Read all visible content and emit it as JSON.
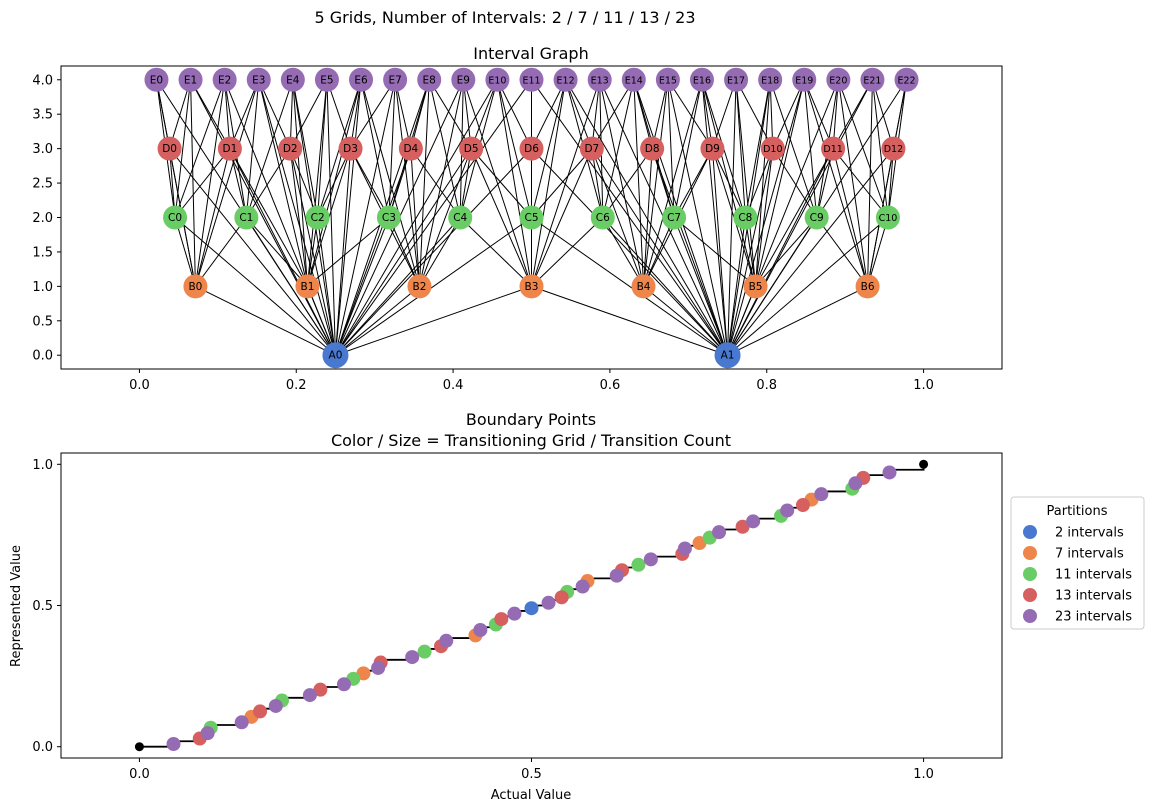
{
  "figure": {
    "suptitle": "5 Grids, Number of Intervals: 2 / 7 / 11 / 13 / 23"
  },
  "colors": {
    "A": "#4878cf",
    "B": "#ee854a",
    "C": "#6acc64",
    "D": "#d65f5f",
    "E": "#956cb4",
    "step": "#000000"
  },
  "chart_data": [
    {
      "type": "network",
      "title": "Interval Graph",
      "xlim": [
        -0.1,
        1.1
      ],
      "ylim": [
        -0.2,
        4.2
      ],
      "x_ticks": [
        0.0,
        0.2,
        0.4,
        0.6,
        0.8,
        1.0
      ],
      "x_tick_labels": [
        "0.0",
        "0.2",
        "0.4",
        "0.6",
        "0.8",
        "1.0"
      ],
      "y_ticks": [
        0.0,
        0.5,
        1.0,
        1.5,
        2.0,
        2.5,
        3.0,
        3.5,
        4.0
      ],
      "y_tick_labels": [
        "0.0",
        "0.5",
        "1.0",
        "1.5",
        "2.0",
        "2.5",
        "3.0",
        "3.5",
        "4.0"
      ],
      "levels": [
        {
          "prefix": "A",
          "y": 0,
          "count": 2
        },
        {
          "prefix": "B",
          "y": 1,
          "count": 7
        },
        {
          "prefix": "C",
          "y": 2,
          "count": 11
        },
        {
          "prefix": "D",
          "y": 3,
          "count": 13
        },
        {
          "prefix": "E",
          "y": 4,
          "count": 23
        }
      ],
      "node_x_rule": "midpoint of interval i of n on [0,1]: (i+0.5)/n",
      "edge_rule": "nodes connected when their intervals overlap"
    },
    {
      "type": "scatter",
      "title": "Boundary Points",
      "subtitle": "Color / Size = Transitioning Grid / Transition Count",
      "xlabel": "Actual Value",
      "ylabel": "Represented Value",
      "xlim": [
        -0.1,
        1.1
      ],
      "ylim": [
        -0.04,
        1.04
      ],
      "x_ticks": [
        0.0,
        0.5,
        1.0
      ],
      "x_tick_labels": [
        "0.0",
        "0.5",
        "1.0"
      ],
      "y_ticks": [
        0.0,
        0.5,
        1.0
      ],
      "y_tick_labels": [
        "0.0",
        "0.5",
        "1.0"
      ],
      "legend_title": "Partitions",
      "legend_position": "right, outside",
      "series": [
        {
          "name": "2 intervals",
          "n": 2
        },
        {
          "name": "7 intervals",
          "n": 7
        },
        {
          "name": "11 intervals",
          "n": 11
        },
        {
          "name": "13 intervals",
          "n": 13
        },
        {
          "name": "23 intervals",
          "n": 23
        }
      ],
      "point_rule": "boundary points k/n for k=1..n-1; y = step-function represented value at x",
      "step_endpoints": [
        [
          0,
          0
        ],
        [
          1,
          1
        ]
      ]
    }
  ]
}
